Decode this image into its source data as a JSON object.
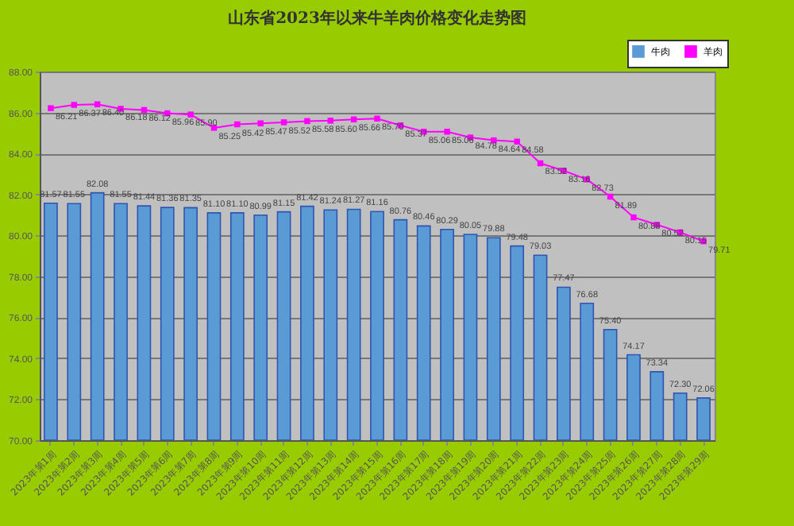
{
  "chart_data": {
    "type": "bar",
    "title": "山东省2023年以来牛羊肉价格变化走势图",
    "categories": [
      "2023年第1周",
      "2023年第2周",
      "2023年第3周",
      "2023年第4周",
      "2023年第5周",
      "2023年第6周",
      "2023年第7周",
      "2023年第8周",
      "2023年第9周",
      "2023年第10周",
      "2023年第11周",
      "2023年第12周",
      "2023年第13周",
      "2023年第14周",
      "2023年第15周",
      "2023年第16周",
      "2023年第17周",
      "2023年第18周",
      "2023年第19周",
      "2023年第20周",
      "2023年第21周",
      "2023年第22周",
      "2023年第23周",
      "2023年第24周",
      "2023年第25周",
      "2023年第26周",
      "2023年第27周",
      "2023年第28周",
      "2023年第29周"
    ],
    "series": [
      {
        "name": "牛肉",
        "color": "#5b9bd5",
        "values": [
          81.57,
          81.55,
          82.08,
          81.55,
          81.44,
          81.36,
          81.35,
          81.1,
          81.1,
          80.99,
          81.15,
          81.42,
          81.24,
          81.27,
          81.16,
          80.76,
          80.46,
          80.29,
          80.05,
          79.88,
          79.48,
          79.03,
          77.47,
          76.68,
          75.4,
          74.17,
          73.34,
          72.3,
          72.06
        ],
        "value_labels": [
          "81.57",
          "81.55",
          "82.08",
          "81.55",
          "81.44",
          "81.36",
          "81.35",
          "81.10",
          "81.10",
          "80.99",
          "81.15",
          "81.42",
          "81.24",
          "81.27",
          "81.16",
          "80.76",
          "80.46",
          "80.29",
          "80.05",
          "79.88",
          "79.48",
          "79.03",
          "77.47",
          "76.68",
          "75.40",
          "74.17",
          "73.34",
          "72.30",
          "72.06"
        ]
      },
      {
        "name": "羊肉",
        "type": "line",
        "color": "#ff00ff",
        "values": [
          86.21,
          86.37,
          86.4,
          86.18,
          86.12,
          85.96,
          85.9,
          85.25,
          85.42,
          85.47,
          85.52,
          85.58,
          85.6,
          85.66,
          85.7,
          85.37,
          85.06,
          85.06,
          84.78,
          84.64,
          84.58,
          83.52,
          83.16,
          82.73,
          81.89,
          80.88,
          80.52,
          80.15,
          79.71
        ],
        "value_labels": [
          "86.21",
          "86.37",
          "86.40",
          "86.18",
          "86.12",
          "85.96",
          "85.90",
          "85.25",
          "85.42",
          "85.47",
          "85.52",
          "85.58",
          "85.60",
          "85.66",
          "85.70",
          "85.37",
          "85.06",
          "85.06",
          "84.78",
          "84.64",
          "84.58",
          "83.52",
          "83.16",
          "82.73",
          "81.89",
          "80.88",
          "80.52",
          "80.15",
          "79.71"
        ]
      }
    ],
    "ylim": [
      70,
      88
    ],
    "yticks": [
      {
        "value": 70,
        "label": "70.00"
      },
      {
        "value": 72,
        "label": "72.00"
      },
      {
        "value": 74,
        "label": "74.00"
      },
      {
        "value": 76,
        "label": "76.00"
      },
      {
        "value": 78,
        "label": "78.00"
      },
      {
        "value": 80,
        "label": "80.00"
      },
      {
        "value": 82,
        "label": "82.00"
      },
      {
        "value": 84,
        "label": "84.00"
      },
      {
        "value": 86,
        "label": "86.00"
      },
      {
        "value": 88,
        "label": "88.00"
      }
    ],
    "grid": "y",
    "legend": "top right",
    "marker": "square"
  }
}
